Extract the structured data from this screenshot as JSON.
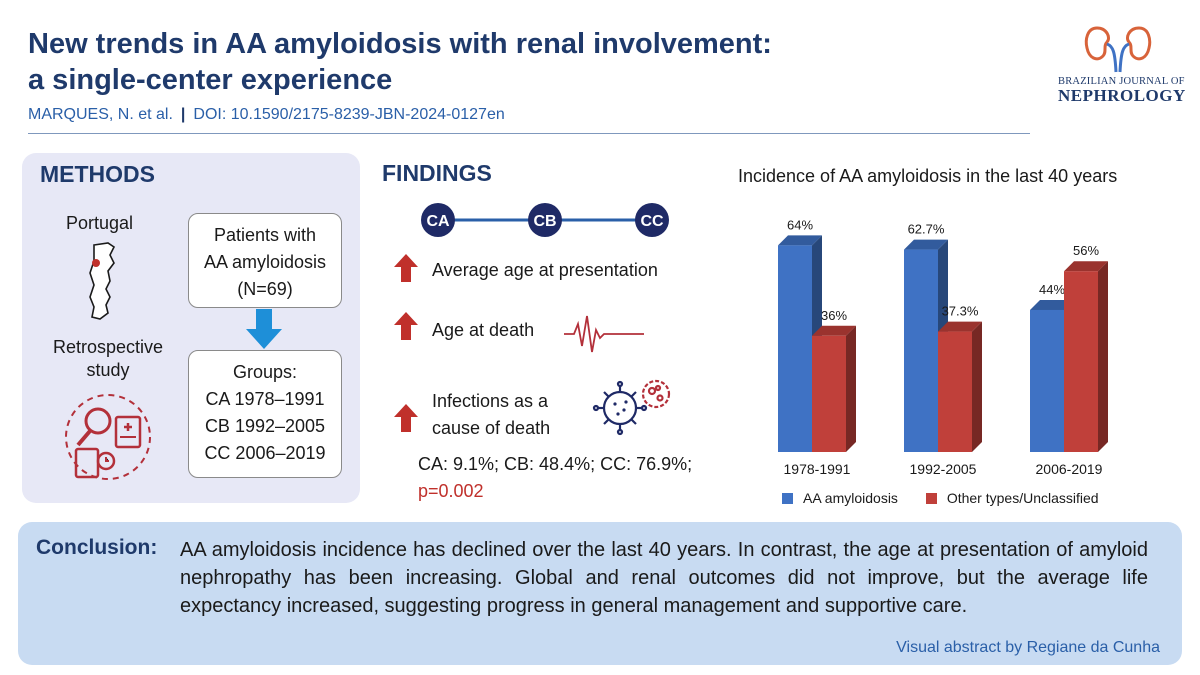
{
  "header": {
    "title_line1": "New trends in AA amyloidosis with renal involvement:",
    "title_line2": "a single-center experience",
    "authors": "MARQUES, N. et al.",
    "separator": "|",
    "doi": "DOI: 10.1590/2175-8239-JBN-2024-0127en"
  },
  "logo": {
    "line1": "BRAZILIAN JOURNAL OF",
    "line2": "NEPHROLOGY",
    "icon": "kidneys-icon"
  },
  "methods": {
    "heading": "METHODS",
    "country": "Portugal",
    "study_line1": "Retrospective",
    "study_line2": "study",
    "patients_line1": "Patients with",
    "patients_line2": "AA amyloidosis",
    "patients_line3": "(N=69)",
    "groups_heading": "Groups:",
    "group_ca": "CA 1978–1991",
    "group_cb": "CB 1992–2005",
    "group_cc": "CC 2006–2019"
  },
  "findings": {
    "heading": "FINDINGS",
    "timeline": [
      "CA",
      "CB",
      "CC"
    ],
    "item1": "Average age at presentation",
    "item2": "Age at death",
    "item3_line1": "Infections as a",
    "item3_line2": "cause of death",
    "stats": "CA: 9.1%; CB: 48.4%; CC: 76.9%;",
    "pvalue": "p=0.002",
    "colors": {
      "arrow": "#c0302b",
      "timeline": "#1f3a6b"
    }
  },
  "chart_data": {
    "type": "bar",
    "title": "Incidence of AA amyloidosis in the last 40 years",
    "categories": [
      "1978-1991",
      "1992-2005",
      "2006-2019"
    ],
    "series": [
      {
        "name": "AA amyloidosis",
        "values": [
          64,
          62.7,
          44
        ],
        "labels": [
          "64%",
          "62.7%",
          "44%"
        ],
        "color": "#3f72c4"
      },
      {
        "name": "Other types/Unclassified",
        "values": [
          36,
          37.3,
          56
        ],
        "labels": [
          "36%",
          "37.3%",
          "56%"
        ],
        "color": "#c0403a"
      }
    ],
    "ylim": [
      0,
      70
    ],
    "grid": false,
    "legend": "bottom",
    "style": "3d"
  },
  "conclusion": {
    "label": "Conclusion:",
    "text": "AA amyloidosis incidence has declined over the last 40 years. In contrast, the age at presentation of amyloid nephropathy has been increasing. Global and renal outcomes did not improve, but the average life expectancy increased, suggesting progress in general management and supportive care.",
    "credit": "Visual abstract by Regiane da Cunha"
  }
}
